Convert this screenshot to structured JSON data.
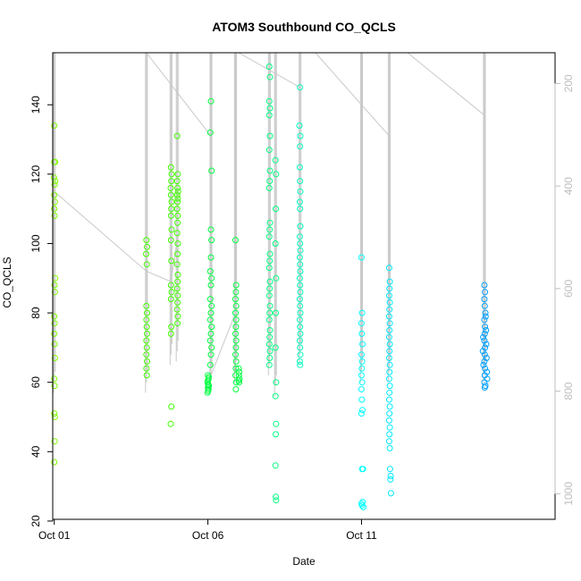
{
  "chart_data": {
    "type": "scatter",
    "title": "ATOM3 Southbound CO_QCLS",
    "xlabel": "Date",
    "ylabel": "CO_QCLS",
    "xlim": [
      -0.05,
      16.3
    ],
    "ylim": [
      20.5,
      155
    ],
    "y2lim": [
      1050,
      140
    ],
    "x_ticks": [
      {
        "value": 0,
        "label": "Oct 01"
      },
      {
        "value": 5,
        "label": "Oct 06"
      },
      {
        "value": 10,
        "label": "Oct 11"
      }
    ],
    "y_ticks": [
      20,
      40,
      60,
      80,
      100,
      120,
      140
    ],
    "y2_ticks": [
      200,
      400,
      600,
      800,
      1000
    ],
    "secondary_axis_color": "#bebebe",
    "altitude_line_color": "#c8c8c8",
    "grid": false,
    "series": [
      {
        "color": "#80ff00",
        "points": [
          [
            0.0,
            134
          ],
          [
            0.0,
            123.5
          ],
          [
            0.03,
            123.5
          ],
          [
            -0.01,
            119
          ],
          [
            0.01,
            117
          ],
          [
            0.03,
            118
          ],
          [
            0.0,
            114
          ],
          [
            0.02,
            112
          ],
          [
            0.0,
            110
          ],
          [
            0.01,
            108
          ],
          [
            0.03,
            90
          ],
          [
            0.01,
            88
          ],
          [
            0.02,
            86
          ],
          [
            0.0,
            79
          ],
          [
            0.01,
            77
          ],
          [
            0.0,
            74
          ],
          [
            0.01,
            71
          ],
          [
            0.02,
            67
          ],
          [
            0.0,
            61
          ],
          [
            0.01,
            59
          ],
          [
            0.0,
            51
          ],
          [
            0.02,
            50
          ],
          [
            0.01,
            43
          ],
          [
            0.0,
            37
          ]
        ]
      },
      {
        "color": "#40ff00",
        "points": [
          [
            3.0,
            101
          ],
          [
            3.02,
            99
          ],
          [
            2.99,
            97
          ],
          [
            3.01,
            94
          ],
          [
            3.0,
            82
          ],
          [
            3.02,
            80
          ],
          [
            3.0,
            78
          ],
          [
            3.01,
            76
          ],
          [
            3.02,
            74
          ],
          [
            3.0,
            72
          ],
          [
            3.01,
            70
          ],
          [
            3.0,
            68
          ],
          [
            3.02,
            66
          ],
          [
            3.0,
            64
          ],
          [
            3.01,
            62
          ],
          [
            3.8,
            122
          ],
          [
            3.82,
            120
          ],
          [
            3.81,
            118
          ],
          [
            3.79,
            116
          ],
          [
            3.8,
            114
          ],
          [
            3.82,
            112
          ],
          [
            3.81,
            110
          ],
          [
            3.8,
            108
          ],
          [
            3.82,
            104
          ],
          [
            3.8,
            101
          ],
          [
            3.81,
            95
          ],
          [
            3.8,
            88
          ],
          [
            3.82,
            86
          ],
          [
            3.8,
            84
          ],
          [
            3.81,
            76
          ],
          [
            3.8,
            74
          ],
          [
            3.81,
            53
          ],
          [
            3.79,
            48
          ],
          [
            4.0,
            131
          ],
          [
            4.02,
            120
          ],
          [
            4.0,
            118
          ],
          [
            4.01,
            116
          ],
          [
            4.03,
            115
          ],
          [
            4.0,
            114
          ],
          [
            4.02,
            113
          ],
          [
            4.01,
            112
          ],
          [
            4.0,
            110
          ],
          [
            4.02,
            108
          ],
          [
            4.01,
            106
          ],
          [
            4.0,
            103
          ],
          [
            4.02,
            100
          ],
          [
            4.01,
            97
          ],
          [
            4.0,
            94
          ],
          [
            4.02,
            91
          ],
          [
            4.01,
            89
          ],
          [
            4.0,
            87
          ],
          [
            4.02,
            85
          ],
          [
            4.01,
            83
          ],
          [
            4.0,
            81
          ],
          [
            4.02,
            79
          ],
          [
            4.01,
            77
          ]
        ]
      },
      {
        "color": "#00ff40",
        "points": [
          [
            5.1,
            141
          ],
          [
            5.08,
            132
          ],
          [
            5.12,
            121
          ],
          [
            5.1,
            104
          ],
          [
            5.12,
            101
          ],
          [
            5.1,
            96
          ],
          [
            5.08,
            92
          ],
          [
            5.12,
            90
          ],
          [
            5.1,
            88
          ],
          [
            5.08,
            84
          ],
          [
            5.12,
            82
          ],
          [
            5.1,
            80
          ],
          [
            5.08,
            78
          ],
          [
            5.12,
            76
          ],
          [
            5.1,
            74
          ],
          [
            5.08,
            72
          ],
          [
            5.12,
            70
          ],
          [
            5.1,
            68
          ],
          [
            5.08,
            65
          ],
          [
            5.0,
            62
          ],
          [
            5.02,
            61
          ],
          [
            4.99,
            60
          ],
          [
            5.01,
            59.5
          ],
          [
            5.03,
            59
          ],
          [
            5.0,
            58.5
          ],
          [
            5.02,
            58
          ],
          [
            5.01,
            57.5
          ],
          [
            4.99,
            57
          ],
          [
            5.03,
            61.5
          ],
          [
            5.0,
            60.5
          ],
          [
            5.02,
            59.2
          ],
          [
            5.9,
            101
          ],
          [
            5.92,
            88
          ],
          [
            5.91,
            86
          ],
          [
            5.9,
            84
          ],
          [
            5.92,
            82
          ],
          [
            5.9,
            80
          ],
          [
            5.92,
            78
          ],
          [
            5.91,
            76
          ],
          [
            5.9,
            74
          ],
          [
            5.92,
            72
          ],
          [
            5.91,
            70
          ],
          [
            5.9,
            68
          ],
          [
            5.92,
            66
          ],
          [
            5.91,
            64
          ],
          [
            5.9,
            62
          ],
          [
            5.92,
            60
          ],
          [
            5.91,
            58
          ],
          [
            6.0,
            64
          ],
          [
            6.02,
            63
          ],
          [
            6.01,
            62
          ],
          [
            6.03,
            61
          ],
          [
            6.0,
            60.5
          ],
          [
            6.02,
            60
          ]
        ]
      },
      {
        "color": "#00ff80",
        "points": [
          [
            7.0,
            151
          ],
          [
            7.02,
            148
          ],
          [
            7.0,
            141
          ],
          [
            7.02,
            139
          ],
          [
            7.0,
            137
          ],
          [
            7.02,
            131
          ],
          [
            7.0,
            127
          ],
          [
            7.02,
            121
          ],
          [
            7.01,
            118
          ],
          [
            7.0,
            116
          ],
          [
            7.02,
            106
          ],
          [
            7.01,
            104
          ],
          [
            7.0,
            102
          ],
          [
            7.02,
            97
          ],
          [
            7.01,
            95
          ],
          [
            7.0,
            93
          ],
          [
            7.02,
            89
          ],
          [
            7.01,
            87
          ],
          [
            7.0,
            85
          ],
          [
            7.02,
            82
          ],
          [
            7.01,
            80
          ],
          [
            7.0,
            78
          ],
          [
            7.02,
            75
          ],
          [
            7.01,
            73
          ],
          [
            7.0,
            71
          ],
          [
            7.02,
            69
          ],
          [
            7.01,
            67
          ],
          [
            7.0,
            65
          ],
          [
            7.2,
            124
          ],
          [
            7.22,
            120
          ],
          [
            7.21,
            110
          ],
          [
            7.2,
            100
          ],
          [
            7.22,
            90
          ],
          [
            7.21,
            80
          ],
          [
            7.2,
            70
          ],
          [
            7.22,
            60
          ],
          [
            7.2,
            56
          ],
          [
            7.22,
            48
          ],
          [
            7.21,
            45
          ],
          [
            7.2,
            36
          ],
          [
            7.21,
            27
          ],
          [
            7.22,
            26
          ]
        ]
      },
      {
        "color": "#00ffc0",
        "points": [
          [
            8.0,
            145
          ],
          [
            7.98,
            134
          ],
          [
            8.01,
            131
          ],
          [
            8.0,
            128
          ],
          [
            7.99,
            122
          ],
          [
            8.0,
            118
          ],
          [
            8.01,
            115
          ],
          [
            7.99,
            112
          ],
          [
            8.0,
            110
          ],
          [
            8.01,
            105
          ],
          [
            7.99,
            102
          ],
          [
            8.0,
            100
          ],
          [
            8.01,
            98
          ],
          [
            7.99,
            96
          ],
          [
            8.0,
            94
          ],
          [
            8.01,
            92
          ],
          [
            7.99,
            90
          ],
          [
            8.0,
            88
          ],
          [
            8.01,
            86
          ],
          [
            7.99,
            84
          ],
          [
            8.0,
            82
          ],
          [
            8.01,
            80
          ],
          [
            7.99,
            78
          ],
          [
            8.0,
            76
          ],
          [
            8.01,
            74
          ],
          [
            7.99,
            72
          ],
          [
            8.0,
            70
          ],
          [
            8.01,
            68
          ],
          [
            7.99,
            66
          ],
          [
            8.0,
            65
          ]
        ]
      },
      {
        "color": "#00ffff",
        "points": [
          [
            10.0,
            96
          ],
          [
            10.02,
            80
          ],
          [
            10.0,
            77
          ],
          [
            10.01,
            74
          ],
          [
            10.03,
            71
          ],
          [
            10.0,
            68
          ],
          [
            10.02,
            66
          ],
          [
            10.01,
            64
          ],
          [
            10.0,
            62
          ],
          [
            10.02,
            60
          ],
          [
            10.0,
            58
          ],
          [
            10.01,
            55
          ],
          [
            10.03,
            52
          ],
          [
            10.0,
            51
          ],
          [
            10.02,
            35
          ],
          [
            10.05,
            35
          ],
          [
            10.0,
            25
          ],
          [
            10.02,
            24.5
          ],
          [
            10.04,
            25.5
          ],
          [
            10.06,
            24
          ]
        ]
      },
      {
        "color": "#00e8ff",
        "points": [
          [
            10.9,
            93
          ],
          [
            10.92,
            89
          ],
          [
            10.91,
            87
          ],
          [
            10.9,
            85
          ],
          [
            10.92,
            83
          ],
          [
            10.91,
            81
          ],
          [
            10.9,
            79
          ],
          [
            10.92,
            77
          ],
          [
            10.91,
            75
          ],
          [
            10.9,
            73
          ],
          [
            10.92,
            71
          ],
          [
            10.91,
            69
          ],
          [
            10.9,
            67
          ],
          [
            10.92,
            65
          ],
          [
            10.91,
            63
          ],
          [
            10.9,
            61
          ],
          [
            10.92,
            59
          ],
          [
            10.91,
            57
          ],
          [
            10.9,
            55
          ],
          [
            10.92,
            53
          ],
          [
            10.91,
            51
          ],
          [
            10.9,
            49
          ],
          [
            10.92,
            47
          ],
          [
            10.91,
            45
          ],
          [
            10.9,
            43
          ],
          [
            10.92,
            41
          ],
          [
            10.93,
            35
          ],
          [
            10.95,
            33
          ],
          [
            10.94,
            32
          ],
          [
            10.96,
            28
          ]
        ]
      },
      {
        "color": "#00a0ff",
        "points": [
          [
            14.0,
            88
          ],
          [
            14.02,
            86
          ],
          [
            14.0,
            84
          ],
          [
            14.01,
            82
          ],
          [
            14.03,
            80
          ],
          [
            14.0,
            78
          ],
          [
            14.02,
            76
          ],
          [
            14.01,
            74
          ],
          [
            14.0,
            72
          ],
          [
            14.02,
            70
          ],
          [
            14.01,
            68
          ],
          [
            14.0,
            66
          ],
          [
            14.02,
            64
          ],
          [
            14.01,
            62
          ],
          [
            14.0,
            60
          ],
          [
            14.03,
            59
          ],
          [
            14.01,
            58.5
          ],
          [
            14.04,
            79
          ],
          [
            14.05,
            75
          ],
          [
            14.06,
            71
          ],
          [
            14.07,
            67
          ],
          [
            14.08,
            63
          ],
          [
            14.09,
            61
          ],
          [
            13.96,
            73
          ],
          [
            13.95,
            69
          ],
          [
            13.97,
            65
          ]
        ]
      }
    ],
    "altitude_spikes": [
      {
        "x": 0.0,
        "top": 155,
        "bottom": 57
      },
      {
        "x": 3.0,
        "top": 155,
        "bottom": 57
      },
      {
        "x": 3.8,
        "top": 155,
        "bottom": 65
      },
      {
        "x": 4.0,
        "top": 155,
        "bottom": 66
      },
      {
        "x": 5.1,
        "top": 155,
        "bottom": 58
      },
      {
        "x": 5.9,
        "top": 155,
        "bottom": 60
      },
      {
        "x": 7.0,
        "top": 155,
        "bottom": 62
      },
      {
        "x": 7.2,
        "top": 155,
        "bottom": 56
      },
      {
        "x": 8.0,
        "top": 155,
        "bottom": 65
      },
      {
        "x": 10.0,
        "top": 155,
        "bottom": 60
      },
      {
        "x": 10.9,
        "top": 155,
        "bottom": 60
      },
      {
        "x": 14.0,
        "top": 155,
        "bottom": 60
      }
    ],
    "altitude_transits": [
      [
        [
          0.0,
          115
        ],
        [
          3.0,
          92
        ],
        [
          3.8,
          89
        ],
        [
          4.0,
          101
        ]
      ],
      [
        [
          3.0,
          155
        ],
        [
          5.1,
          131
        ]
      ],
      [
        [
          5.1,
          62
        ],
        [
          5.9,
          80
        ]
      ],
      [
        [
          6.0,
          155
        ],
        [
          8.0,
          145
        ]
      ],
      [
        [
          8.5,
          155
        ],
        [
          10.9,
          131
        ],
        [
          10.9,
          70
        ]
      ],
      [
        [
          11.5,
          155
        ],
        [
          14.0,
          137
        ]
      ]
    ]
  }
}
